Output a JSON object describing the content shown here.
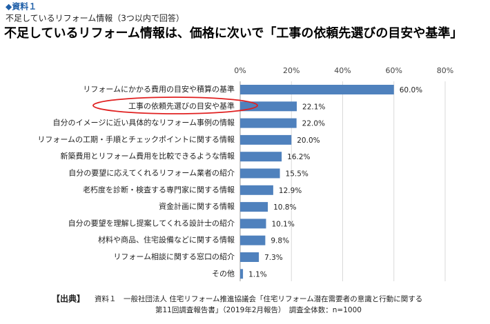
{
  "header": {
    "label": "◆資料１",
    "subtitle": "不足しているリフォーム情報（3つ以内で回答）",
    "title": "不足しているリフォーム情報は、価格に次いで「工事の依頼先選びの目安や基準」"
  },
  "chart_data": {
    "type": "bar",
    "orientation": "horizontal",
    "categories": [
      "リフォームにかかる費用の目安や積算の基準",
      "工事の依頼先選びの目安や基準",
      "自分のイメージに近い具体的なリフォーム事例の情報",
      "リフォームの工期・手順とチェックポイントに関する情報",
      "新築費用とリフォーム費用を比較できるような情報",
      "自分の要望に応えてくれるリフォーム業者の紹介",
      "老朽度を診断・検査する専門家に関する情報",
      "資金計画に関する情報",
      "自分の要望を理解し提案してくれる設計士の紹介",
      "材料や商品、住宅設備などに関する情報",
      "リフォーム相談に関する窓口の紹介",
      "その他"
    ],
    "values": [
      60.0,
      22.1,
      22.0,
      20.0,
      16.2,
      15.5,
      12.9,
      10.8,
      10.1,
      9.8,
      7.3,
      1.1
    ],
    "value_labels": [
      "60.0%",
      "22.1%",
      "22.0%",
      "20.0%",
      "16.2%",
      "15.5%",
      "12.9%",
      "10.8%",
      "10.1%",
      "9.8%",
      "7.3%",
      "1.1%"
    ],
    "color": "#4f81bd",
    "xlim": [
      0,
      80
    ],
    "xticks": [
      {
        "value": 0,
        "label": "0%"
      },
      {
        "value": 20,
        "label": "20%"
      },
      {
        "value": 40,
        "label": "40%"
      },
      {
        "value": 60,
        "label": "60%"
      },
      {
        "value": 80,
        "label": "80%"
      }
    ],
    "grid": true
  },
  "source": {
    "label": "【出典】",
    "lines": [
      "資料１　一般社団法人 住宅リフォーム推進協議会「住宅リフォーム潜在需要者の意識と行動に関する",
      "第11回調査報告書」（2019年2月報告）　調査全体数：n=1000"
    ]
  }
}
